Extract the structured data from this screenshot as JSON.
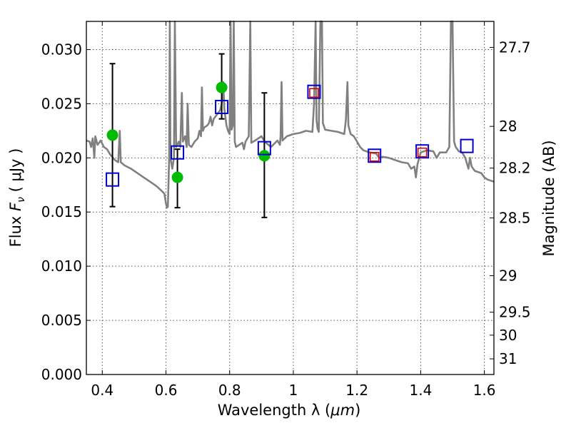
{
  "chart_data": {
    "type": "scatter",
    "xlabel": "Wavelength  λ (μm)",
    "ylabel": "Flux  F_ν  ( μJy )",
    "ylabel_parts": {
      "prefix": "Flux  ",
      "symbol": "F",
      "subscript": "ν",
      "unit": "  ( μJy )"
    },
    "xlabel_parts": {
      "prefix": "Wavelength  λ (",
      "unit": "μm",
      "suffix": ")"
    },
    "y2label": "Magnitude (AB)",
    "xlim": [
      0.35,
      1.63
    ],
    "ylim": [
      0.0,
      0.0326
    ],
    "grid": true,
    "x_ticks": [
      {
        "value": 0.4,
        "label": "0.4"
      },
      {
        "value": 0.6,
        "label": "0.6"
      },
      {
        "value": 0.8,
        "label": "0.8"
      },
      {
        "value": 1.0,
        "label": "1"
      },
      {
        "value": 1.2,
        "label": "1.2"
      },
      {
        "value": 1.4,
        "label": "1.4"
      },
      {
        "value": 1.6,
        "label": "1.6"
      }
    ],
    "y_ticks": [
      {
        "value": 0.0,
        "label": "0.000"
      },
      {
        "value": 0.005,
        "label": "0.005"
      },
      {
        "value": 0.01,
        "label": "0.010"
      },
      {
        "value": 0.015,
        "label": "0.015"
      },
      {
        "value": 0.02,
        "label": "0.020"
      },
      {
        "value": 0.025,
        "label": "0.025"
      },
      {
        "value": 0.03,
        "label": "0.030"
      }
    ],
    "y2_ticks": [
      {
        "mag": 27.7,
        "label": "27.7"
      },
      {
        "mag": 28.0,
        "label": "28"
      },
      {
        "mag": 28.2,
        "label": "28.2"
      },
      {
        "mag": 28.5,
        "label": "28.5"
      },
      {
        "mag": 29.0,
        "label": "29"
      },
      {
        "mag": 29.5,
        "label": "29.5"
      },
      {
        "mag": 30.0,
        "label": "30"
      },
      {
        "mag": 31.0,
        "label": "31"
      }
    ],
    "colors": {
      "sed": "#808080",
      "observed": "#00bb00",
      "model_box": "#0000cc",
      "nir_box": "#dd0000",
      "errorbar": "#000000"
    },
    "series": [
      {
        "kind": "line",
        "points": [
          [
            0.35,
            0.0216
          ],
          [
            0.36,
            0.0215
          ],
          [
            0.365,
            0.021
          ],
          [
            0.37,
            0.0218
          ],
          [
            0.375,
            0.02
          ],
          [
            0.378,
            0.022
          ],
          [
            0.385,
            0.0212
          ],
          [
            0.395,
            0.0216
          ],
          [
            0.405,
            0.021
          ],
          [
            0.415,
            0.0208
          ],
          [
            0.425,
            0.0203
          ],
          [
            0.44,
            0.0198
          ],
          [
            0.45,
            0.0196
          ],
          [
            0.455,
            0.0225
          ],
          [
            0.458,
            0.0196
          ],
          [
            0.47,
            0.0193
          ],
          [
            0.49,
            0.019
          ],
          [
            0.51,
            0.0186
          ],
          [
            0.53,
            0.0182
          ],
          [
            0.55,
            0.0178
          ],
          [
            0.57,
            0.0174
          ],
          [
            0.585,
            0.017
          ],
          [
            0.595,
            0.0167
          ],
          [
            0.6,
            0.0158
          ],
          [
            0.603,
            0.0154
          ],
          [
            0.606,
            0.0155
          ],
          [
            0.61,
            0.02
          ],
          [
            0.612,
            0.0326
          ],
          [
            0.614,
            0.02
          ],
          [
            0.617,
            0.0195
          ],
          [
            0.62,
            0.019
          ],
          [
            0.625,
            0.02
          ],
          [
            0.628,
            0.0326
          ],
          [
            0.632,
            0.021
          ],
          [
            0.64,
            0.0215
          ],
          [
            0.645,
            0.021
          ],
          [
            0.65,
            0.026
          ],
          [
            0.653,
            0.0215
          ],
          [
            0.66,
            0.022
          ],
          [
            0.665,
            0.021
          ],
          [
            0.668,
            0.025
          ],
          [
            0.672,
            0.0212
          ],
          [
            0.68,
            0.021
          ],
          [
            0.69,
            0.0215
          ],
          [
            0.7,
            0.0218
          ],
          [
            0.705,
            0.0225
          ],
          [
            0.71,
            0.022
          ],
          [
            0.713,
            0.0265
          ],
          [
            0.716,
            0.0225
          ],
          [
            0.72,
            0.0228
          ],
          [
            0.73,
            0.023
          ],
          [
            0.735,
            0.0232
          ],
          [
            0.74,
            0.0238
          ],
          [
            0.745,
            0.023
          ],
          [
            0.75,
            0.0236
          ],
          [
            0.76,
            0.024
          ],
          [
            0.77,
            0.0244
          ],
          [
            0.775,
            0.025
          ],
          [
            0.78,
            0.027
          ],
          [
            0.783,
            0.0246
          ],
          [
            0.79,
            0.023
          ],
          [
            0.795,
            0.0225
          ],
          [
            0.8,
            0.0222
          ],
          [
            0.803,
            0.0326
          ],
          [
            0.806,
            0.0226
          ],
          [
            0.81,
            0.023
          ],
          [
            0.813,
            0.0326
          ],
          [
            0.816,
            0.0215
          ],
          [
            0.82,
            0.021
          ],
          [
            0.83,
            0.0212
          ],
          [
            0.84,
            0.0214
          ],
          [
            0.845,
            0.0208
          ],
          [
            0.85,
            0.0215
          ],
          [
            0.86,
            0.022
          ],
          [
            0.865,
            0.0326
          ],
          [
            0.868,
            0.0214
          ],
          [
            0.88,
            0.0216
          ],
          [
            0.89,
            0.0218
          ],
          [
            0.9,
            0.022
          ],
          [
            0.91,
            0.0215
          ],
          [
            0.93,
            0.021
          ],
          [
            0.95,
            0.0216
          ],
          [
            0.958,
            0.0212
          ],
          [
            0.96,
            0.022
          ],
          [
            0.963,
            0.027
          ],
          [
            0.966,
            0.0216
          ],
          [
            0.98,
            0.022
          ],
          [
            1.0,
            0.0222
          ],
          [
            1.02,
            0.0223
          ],
          [
            1.04,
            0.0225
          ],
          [
            1.06,
            0.0224
          ],
          [
            1.065,
            0.025
          ],
          [
            1.07,
            0.0326
          ],
          [
            1.073,
            0.0235
          ],
          [
            1.076,
            0.0227
          ],
          [
            1.08,
            0.0224
          ],
          [
            1.085,
            0.0326
          ],
          [
            1.09,
            0.0326
          ],
          [
            1.093,
            0.0232
          ],
          [
            1.1,
            0.0226
          ],
          [
            1.12,
            0.0225
          ],
          [
            1.14,
            0.0224
          ],
          [
            1.16,
            0.0222
          ],
          [
            1.165,
            0.0235
          ],
          [
            1.17,
            0.027
          ],
          [
            1.173,
            0.023
          ],
          [
            1.18,
            0.0222
          ],
          [
            1.19,
            0.022
          ],
          [
            1.2,
            0.0215
          ],
          [
            1.21,
            0.021
          ],
          [
            1.22,
            0.0207
          ],
          [
            1.24,
            0.0205
          ],
          [
            1.26,
            0.0204
          ],
          [
            1.27,
            0.02
          ],
          [
            1.28,
            0.0201
          ],
          [
            1.3,
            0.02
          ],
          [
            1.32,
            0.0198
          ],
          [
            1.34,
            0.0196
          ],
          [
            1.36,
            0.0195
          ],
          [
            1.37,
            0.019
          ],
          [
            1.38,
            0.0192
          ],
          [
            1.385,
            0.0182
          ],
          [
            1.39,
            0.0194
          ],
          [
            1.4,
            0.0205
          ],
          [
            1.42,
            0.0207
          ],
          [
            1.44,
            0.0206
          ],
          [
            1.45,
            0.02
          ],
          [
            1.46,
            0.0205
          ],
          [
            1.48,
            0.0205
          ],
          [
            1.49,
            0.021
          ],
          [
            1.495,
            0.0326
          ],
          [
            1.5,
            0.0326
          ],
          [
            1.505,
            0.0215
          ],
          [
            1.51,
            0.021
          ],
          [
            1.52,
            0.0206
          ],
          [
            1.53,
            0.0205
          ],
          [
            1.54,
            0.02
          ],
          [
            1.55,
            0.019
          ],
          [
            1.555,
            0.02
          ],
          [
            1.56,
            0.0192
          ],
          [
            1.57,
            0.0188
          ],
          [
            1.58,
            0.0187
          ],
          [
            1.59,
            0.0186
          ],
          [
            1.6,
            0.0182
          ],
          [
            1.61,
            0.018
          ],
          [
            1.62,
            0.0179
          ],
          [
            1.63,
            0.0178
          ]
        ]
      },
      {
        "kind": "observed",
        "points": [
          {
            "x": 0.432,
            "y": 0.0221,
            "yerr_low": 0.0155,
            "yerr_high": 0.0287
          },
          {
            "x": 0.636,
            "y": 0.0182,
            "yerr_low": 0.0154,
            "yerr_high": 0.0208
          },
          {
            "x": 0.775,
            "y": 0.0265,
            "yerr_low": 0.0236,
            "yerr_high": 0.0296
          },
          {
            "x": 0.909,
            "y": 0.0202,
            "yerr_low": 0.0145,
            "yerr_high": 0.026
          }
        ]
      },
      {
        "kind": "model-boxes",
        "points": [
          {
            "x": 0.432,
            "y": 0.018
          },
          {
            "x": 0.636,
            "y": 0.0205
          },
          {
            "x": 0.775,
            "y": 0.0247
          },
          {
            "x": 0.909,
            "y": 0.0209
          },
          {
            "x": 1.065,
            "y": 0.0261
          },
          {
            "x": 1.255,
            "y": 0.0202
          },
          {
            "x": 1.405,
            "y": 0.0206
          },
          {
            "x": 1.545,
            "y": 0.0211
          }
        ]
      },
      {
        "kind": "nir-boxes",
        "points": [
          {
            "x": 1.065,
            "y": 0.026
          },
          {
            "x": 1.255,
            "y": 0.0201
          },
          {
            "x": 1.405,
            "y": 0.0205
          }
        ]
      }
    ]
  }
}
